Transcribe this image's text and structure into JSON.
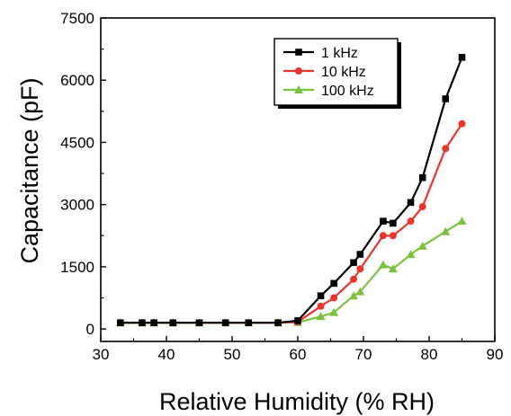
{
  "chart_data": {
    "type": "line",
    "xlabel": "Relative Humidity (% RH)",
    "ylabel": "Capacitance (pF)",
    "xlim": [
      30,
      90
    ],
    "ylim": [
      -300,
      7500
    ],
    "x_ticks": [
      30,
      40,
      50,
      60,
      70,
      80,
      90
    ],
    "y_ticks": [
      0,
      1500,
      3000,
      4500,
      6000,
      7500
    ],
    "x_tick_labels": [
      "30",
      "40",
      "50",
      "60",
      "70",
      "80",
      "90"
    ],
    "y_tick_labels": [
      "0",
      "1500",
      "3000",
      "4500",
      "6000",
      "7500"
    ],
    "grid": false,
    "legend_position": "top-right",
    "series": [
      {
        "name": "1 kHz",
        "color": "#000000",
        "marker": "square",
        "x": [
          33,
          36.3,
          38.1,
          41,
          45,
          49,
          52.5,
          57,
          60,
          63.5,
          65.5,
          68.5,
          69.5,
          73,
          74.5,
          77.2,
          79,
          82.5,
          85
        ],
        "y": [
          150,
          150,
          150,
          150,
          150,
          150,
          150,
          150,
          200,
          800,
          1100,
          1600,
          1800,
          2600,
          2550,
          3050,
          3650,
          5550,
          6550
        ]
      },
      {
        "name": "10 kHz",
        "color": "#e8362f",
        "marker": "circle",
        "x": [
          33,
          36.3,
          38.1,
          41,
          45,
          49,
          52.5,
          57,
          60,
          63.5,
          65.5,
          68.5,
          69.5,
          73,
          74.5,
          77.2,
          79,
          82.5,
          85
        ],
        "y": [
          150,
          150,
          150,
          150,
          150,
          150,
          150,
          150,
          170,
          550,
          750,
          1200,
          1450,
          2250,
          2250,
          2600,
          2950,
          4350,
          4950
        ]
      },
      {
        "name": "100 kHz",
        "color": "#7cc142",
        "marker": "triangle",
        "x": [
          33,
          36.3,
          38.1,
          41,
          45,
          49,
          52.5,
          57,
          60,
          63.5,
          65.5,
          68.5,
          69.5,
          73,
          74.5,
          77.2,
          79,
          82.5,
          85
        ],
        "y": [
          150,
          150,
          150,
          150,
          150,
          150,
          150,
          150,
          160,
          300,
          400,
          800,
          900,
          1550,
          1450,
          1800,
          2000,
          2350,
          2600
        ]
      }
    ]
  }
}
